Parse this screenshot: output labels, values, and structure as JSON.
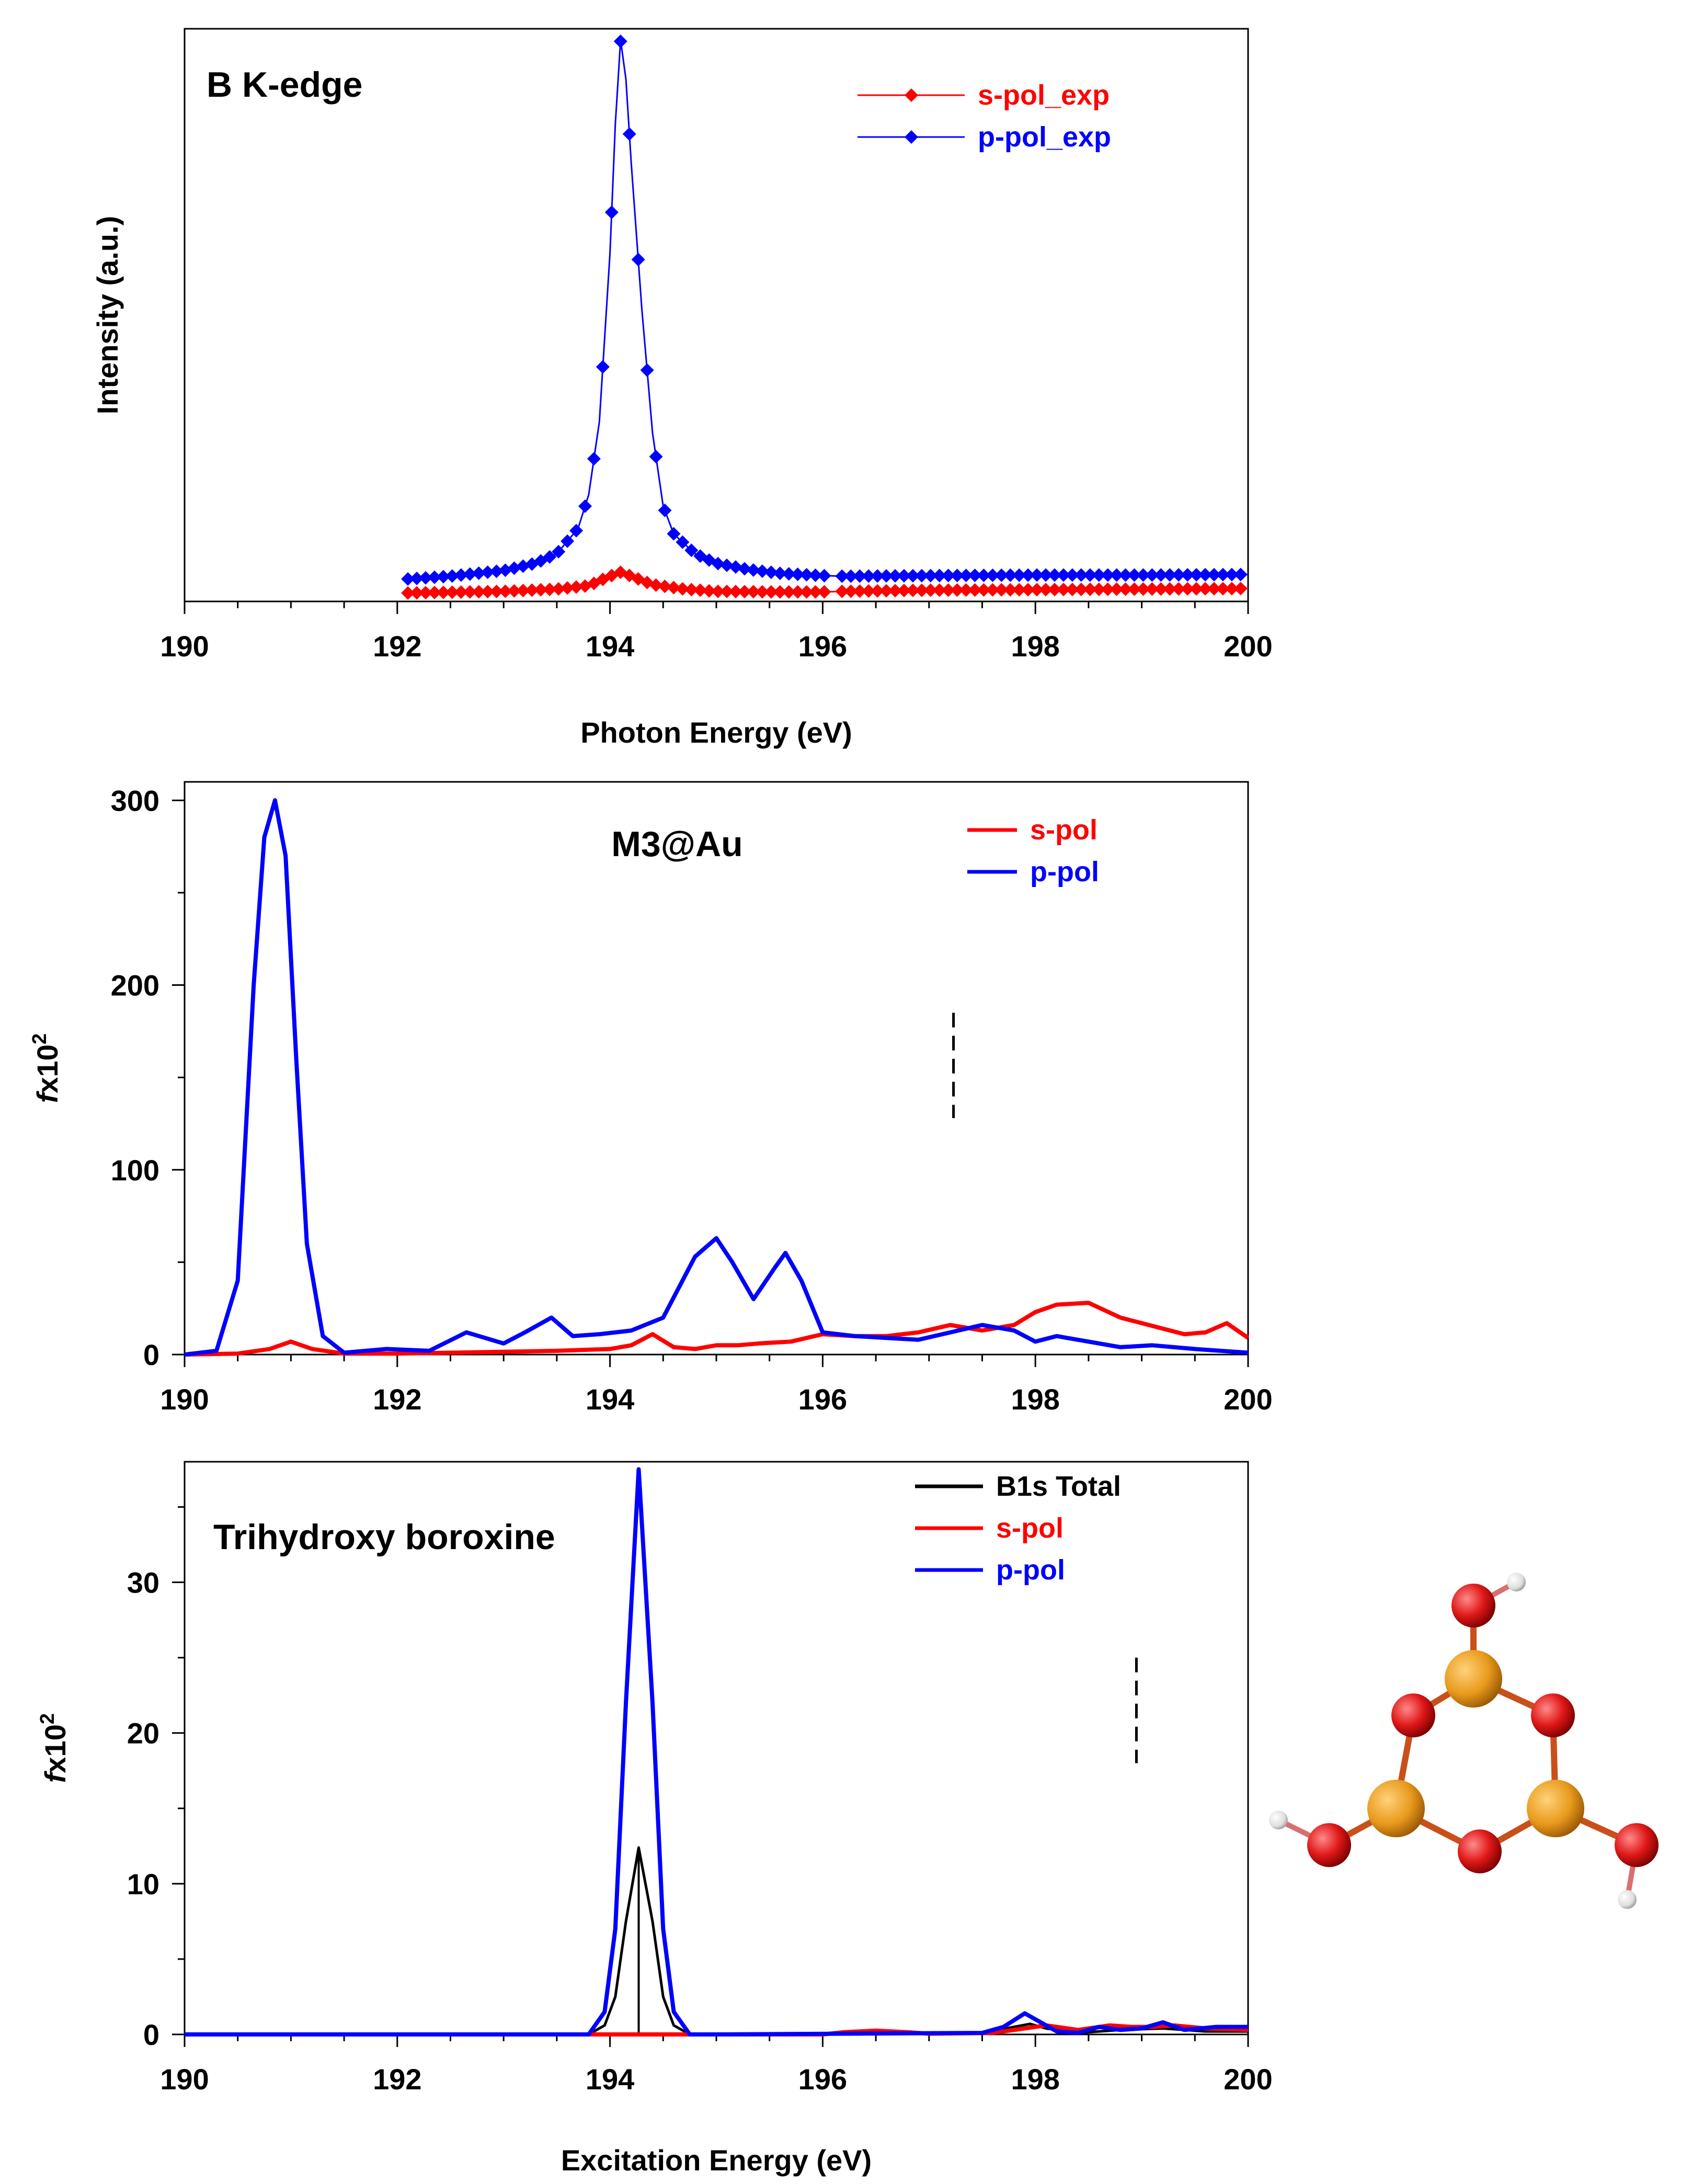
{
  "chart_data": [
    {
      "type": "line",
      "title": "B K-edge",
      "xlabel": "Photon Energy (eV)",
      "ylabel": "Intensity (a.u.)",
      "xlim": [
        190,
        200
      ],
      "ylim": [
        0,
        1.02
      ],
      "x_ticks": [
        "190",
        "192",
        "194",
        "196",
        "198",
        "200"
      ],
      "markers": "diamond",
      "legend_position": "top-right",
      "series": [
        {
          "name": "s-pol_exp",
          "color": "#ff0000",
          "x": [
            192.1,
            193.0,
            193.5,
            193.8,
            194.0,
            194.1,
            194.2,
            194.4,
            194.7,
            195.0,
            195.5,
            196.0,
            196.2,
            197.0,
            198.0,
            199.0,
            200.0
          ],
          "y": [
            0.015,
            0.018,
            0.022,
            0.028,
            0.045,
            0.052,
            0.045,
            0.03,
            0.022,
            0.018,
            0.017,
            0.017,
            0.018,
            0.02,
            0.021,
            0.022,
            0.023
          ]
        },
        {
          "name": "p-pol_exp",
          "color": "#0000ff",
          "x": [
            192.1,
            192.5,
            193.0,
            193.3,
            193.5,
            193.7,
            193.8,
            193.9,
            194.0,
            194.05,
            194.1,
            194.15,
            194.2,
            194.3,
            194.4,
            194.5,
            194.6,
            194.8,
            195.0,
            195.3,
            195.6,
            196.0,
            196.2,
            197.0,
            198.0,
            199.0,
            200.0
          ],
          "y": [
            0.04,
            0.045,
            0.055,
            0.068,
            0.085,
            0.13,
            0.19,
            0.32,
            0.62,
            0.85,
            1.0,
            0.93,
            0.78,
            0.52,
            0.3,
            0.17,
            0.12,
            0.085,
            0.068,
            0.057,
            0.05,
            0.046,
            0.045,
            0.046,
            0.047,
            0.047,
            0.048
          ]
        }
      ]
    },
    {
      "type": "line",
      "title": "M3@Au",
      "xlabel": "",
      "ylabel": "fx10",
      "ylabel_exponent": "2",
      "xlim": [
        190,
        200
      ],
      "ylim": [
        0,
        310
      ],
      "x_ticks": [
        "190",
        "192",
        "194",
        "196",
        "198",
        "200"
      ],
      "y_ticks": [
        "0",
        "100",
        "200",
        "300"
      ],
      "legend_position": "top-right",
      "ionization_marker_x": 197.23,
      "series": [
        {
          "name": "s-pol",
          "color": "#ff0000",
          "x": [
            190,
            190.5,
            190.8,
            191.0,
            191.2,
            191.5,
            192,
            193,
            193.5,
            194,
            194.2,
            194.4,
            194.6,
            194.8,
            195,
            195.2,
            195.4,
            195.7,
            196,
            196.3,
            196.6,
            196.9,
            197.2,
            197.5,
            197.8,
            198.0,
            198.2,
            198.5,
            198.8,
            199.0,
            199.4,
            199.6,
            199.8,
            200
          ],
          "y": [
            0,
            0.5,
            3,
            7,
            3,
            0.5,
            0.5,
            1.5,
            2,
            3,
            5,
            11,
            4,
            3,
            5,
            5,
            6,
            7,
            11,
            10,
            10,
            12,
            16,
            13,
            16,
            23,
            27,
            28,
            20,
            17,
            11,
            12,
            17,
            9
          ]
        },
        {
          "name": "p-pol",
          "color": "#0000ff",
          "x": [
            190,
            190.3,
            190.5,
            190.65,
            190.75,
            190.85,
            190.95,
            191.05,
            191.15,
            191.3,
            191.5,
            191.9,
            192.3,
            192.65,
            193.0,
            193.2,
            193.45,
            193.65,
            193.9,
            194.2,
            194.5,
            194.8,
            195.0,
            195.15,
            195.35,
            195.55,
            195.65,
            195.8,
            196.0,
            196.3,
            196.6,
            196.9,
            197.2,
            197.5,
            197.8,
            198.0,
            198.2,
            198.5,
            198.8,
            199.1,
            199.5,
            200
          ],
          "y": [
            0,
            2,
            40,
            200,
            280,
            300,
            270,
            160,
            60,
            10,
            1,
            3,
            2,
            12,
            6,
            12,
            20,
            10,
            11,
            13,
            20,
            53,
            63,
            50,
            30,
            47,
            55,
            40,
            12,
            10,
            9,
            8,
            12,
            16,
            13,
            7,
            10,
            7,
            4,
            5,
            3,
            1
          ]
        }
      ]
    },
    {
      "type": "line",
      "title": "Trihydroxy boroxine",
      "xlabel": "Excitation Energy (eV)",
      "ylabel": "fx10",
      "ylabel_exponent": "2",
      "xlim": [
        190,
        200
      ],
      "ylim": [
        0,
        38
      ],
      "x_ticks": [
        "190",
        "192",
        "194",
        "196",
        "198",
        "200"
      ],
      "y_ticks": [
        "0",
        "10",
        "20",
        "30"
      ],
      "legend_position": "top-right",
      "ionization_marker_x": 198.95,
      "stick_x": 194.27,
      "series": [
        {
          "name": "B1s Total",
          "color": "#000000",
          "x": [
            190,
            193.8,
            193.95,
            194.05,
            194.15,
            194.27,
            194.4,
            194.5,
            194.6,
            194.75,
            195,
            197.5,
            197.8,
            197.95,
            198.1,
            198.4,
            198.8,
            199.2,
            199.6,
            200
          ],
          "y": [
            0,
            0,
            0.6,
            2.5,
            7.5,
            12.4,
            7.5,
            2.5,
            0.6,
            0,
            0,
            0.1,
            0.5,
            0.7,
            0.4,
            0.1,
            0.3,
            0.4,
            0.2,
            0.2
          ]
        },
        {
          "name": "s-pol",
          "color": "#ff0000",
          "x": [
            190,
            196.0,
            196.2,
            196.5,
            196.8,
            197.0,
            197.6,
            197.9,
            198.1,
            198.4,
            198.7,
            198.9,
            199.1,
            199.3,
            199.6,
            200
          ],
          "y": [
            0,
            0,
            0.15,
            0.25,
            0.15,
            0.05,
            0.1,
            0.4,
            0.6,
            0.3,
            0.6,
            0.5,
            0.5,
            0.6,
            0.4,
            0.3
          ]
        },
        {
          "name": "p-pol",
          "color": "#0000ff",
          "x": [
            190,
            193.8,
            193.95,
            194.05,
            194.15,
            194.27,
            194.4,
            194.5,
            194.6,
            194.75,
            195,
            197.5,
            197.7,
            197.9,
            198.05,
            198.2,
            198.4,
            198.6,
            198.8,
            199.0,
            199.2,
            199.4,
            199.7,
            200
          ],
          "y": [
            0,
            0,
            1.5,
            7,
            22,
            37.5,
            22,
            7,
            1.5,
            0,
            0,
            0.1,
            0.5,
            1.4,
            0.8,
            0.2,
            0.1,
            0.5,
            0.3,
            0.4,
            0.8,
            0.3,
            0.5,
            0.5
          ]
        }
      ]
    }
  ]
}
